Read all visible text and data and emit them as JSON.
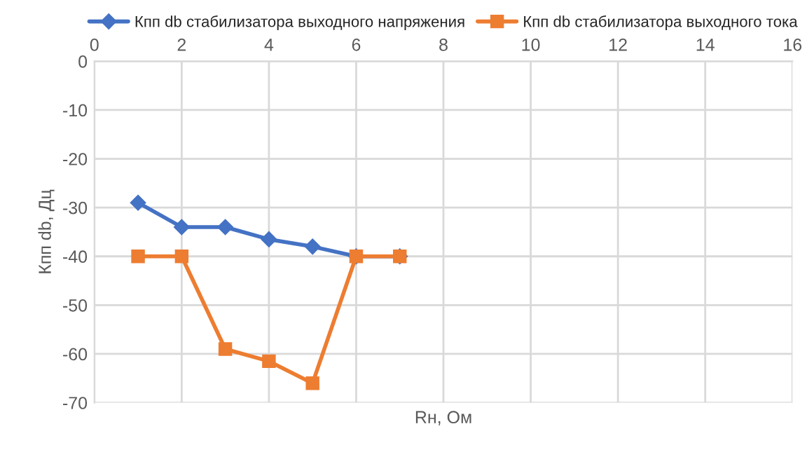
{
  "chart_data": {
    "type": "line",
    "xlabel": "Rн, Ом",
    "ylabel": "Кпп db, Дц",
    "x": [
      1,
      2,
      3,
      4,
      5,
      6,
      7
    ],
    "series": [
      {
        "name": "Кпп db стабилизатора выходного напряжения",
        "color": "#4472c4",
        "marker": "diamond",
        "values": [
          -29,
          -34,
          -34,
          -36.5,
          -38,
          -40,
          -40
        ]
      },
      {
        "name": "Кпп db стабилизатора выходного тока",
        "color": "#ed7d31",
        "marker": "square",
        "values": [
          -40,
          -40,
          -59,
          -61.5,
          -66,
          -40,
          -40
        ]
      }
    ],
    "xlim": [
      0,
      16
    ],
    "xticks": [
      0,
      2,
      4,
      6,
      8,
      10,
      12,
      14,
      16
    ],
    "ylim": [
      -70,
      0
    ],
    "yticks": [
      -70,
      -60,
      -50,
      -40,
      -30,
      -20,
      -10,
      0
    ],
    "grid": true,
    "legend": "top",
    "line_style": "solid"
  }
}
